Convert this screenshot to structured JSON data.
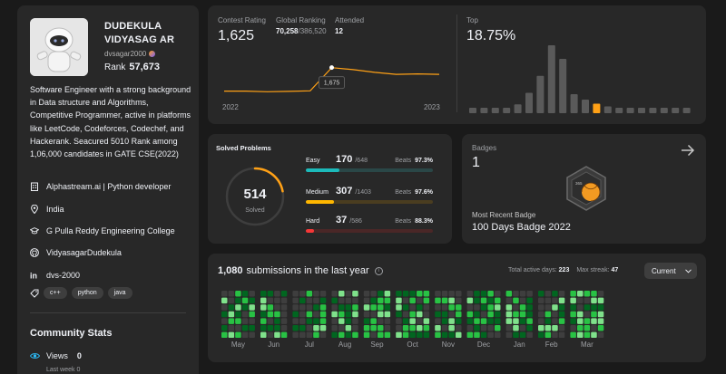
{
  "profile": {
    "name": "DUDEKULA VIDYASAG AR",
    "username": "dvsagar2000",
    "rank_label": "Rank",
    "rank_value": "57,673",
    "bio": "Software Engineer with a strong background in Data structure and Algorithms, Competitive Programmer, active in platforms like LeetCode, Codeforces, Codechef, and Hackerank. Seacured 5010 Rank among 1,06,000 candidates in GATE CSE(2022)",
    "company": "Alphastream.ai | Python developer",
    "location": "India",
    "school": "G Pulla Reddy Engineering College",
    "github": "VidyasagarDudekula",
    "linkedin": "dvs-2000",
    "skills": [
      "c++",
      "python",
      "java"
    ],
    "community_title": "Community Stats",
    "views_label": "Views",
    "views_value": "0",
    "last_week_label": "Last week",
    "last_week_value": "0"
  },
  "contest": {
    "rating_label": "Contest Rating",
    "rating_value": "1,625",
    "global_label": "Global Ranking",
    "global_value": "70,258",
    "global_total": "/386,520",
    "attended_label": "Attended",
    "attended_value": "12",
    "tooltip_value": "1,675",
    "year_start": "2022",
    "year_end": "2023",
    "top_label": "Top",
    "top_value": "18.75%",
    "rating_series": [
      1500,
      1500,
      1495,
      1498,
      1502,
      1675,
      1660,
      1640,
      1625,
      1628,
      1625
    ],
    "histogram": [
      0.08,
      0.08,
      0.08,
      0.08,
      0.13,
      0.3,
      0.55,
      1.0,
      0.8,
      0.28,
      0.2,
      0.14,
      0.1,
      0.08,
      0.08,
      0.08,
      0.08,
      0.08,
      0.08,
      0.08
    ],
    "histogram_highlight_index": 11,
    "accent_color": "#ffa116"
  },
  "solved": {
    "title": "Solved Problems",
    "total": "514",
    "total_label": "Solved",
    "progress": 0.22,
    "beats_label": "Beats",
    "levels": [
      {
        "name": "Easy",
        "count": "170",
        "total": "/648",
        "beats": "97.3%",
        "ratio": 0.262,
        "color": "#1cbaba",
        "track": "#2a4747"
      },
      {
        "name": "Medium",
        "count": "307",
        "total": "/1403",
        "beats": "97.6%",
        "ratio": 0.219,
        "color": "#ffb700",
        "track": "#4a3d20"
      },
      {
        "name": "Hard",
        "count": "37",
        "total": "/586",
        "beats": "88.3%",
        "ratio": 0.063,
        "color": "#f63737",
        "track": "#4a2727"
      }
    ]
  },
  "badges": {
    "label": "Badges",
    "count": "1",
    "recent_label": "Most Recent Badge",
    "recent_name": "100 Days Badge 2022"
  },
  "submissions": {
    "count": "1,080",
    "title": "submissions in the last year",
    "active_label": "Total active days:",
    "active_value": "223",
    "streak_label": "Max streak:",
    "streak_value": "47",
    "dropdown_value": "Current",
    "months": [
      "May",
      "Jun",
      "Jul",
      "Aug",
      "Sep",
      "Oct",
      "Nov",
      "Dec",
      "Jan",
      "Feb",
      "Mar"
    ],
    "month_weeks": [
      5,
      4,
      5,
      4,
      4,
      5,
      4,
      5,
      4,
      4,
      5
    ],
    "colors": [
      "#3e3e3e",
      "#016620",
      "#28c244",
      "#7fe18b"
    ]
  }
}
